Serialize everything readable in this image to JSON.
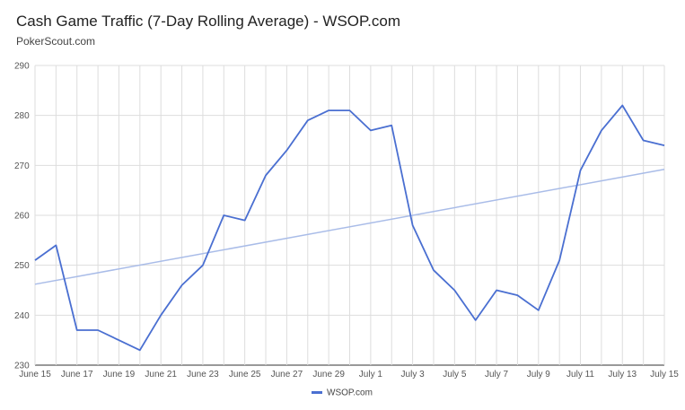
{
  "header": {
    "title": "Cash Game Traffic (7-Day Rolling Average) - WSOP.com",
    "subtitle": "PokerScout.com"
  },
  "colors": {
    "series": "#4a6fd1",
    "trend": "#a9bce8",
    "grid": "#dddddd"
  },
  "chart_data": {
    "type": "line",
    "title": "Cash Game Traffic (7-Day Rolling Average) - WSOP.com",
    "subtitle": "PokerScout.com",
    "xlabel": "",
    "ylabel": "",
    "ylim": [
      230,
      290
    ],
    "yticks": [
      230,
      240,
      250,
      260,
      270,
      280,
      290
    ],
    "x": [
      "June 15",
      "June 16",
      "June 17",
      "June 18",
      "June 19",
      "June 20",
      "June 21",
      "June 22",
      "June 23",
      "June 24",
      "June 25",
      "June 26",
      "June 27",
      "June 28",
      "June 29",
      "June 30",
      "July 1",
      "July 2",
      "July 3",
      "July 4",
      "July 5",
      "July 6",
      "July 7",
      "July 8",
      "July 9",
      "July 10",
      "July 11",
      "July 12",
      "July 13",
      "July 14",
      "July 15"
    ],
    "xtick_labels": [
      "June 15",
      "June 17",
      "June 19",
      "June 21",
      "June 23",
      "June 25",
      "June 27",
      "June 29",
      "July 1",
      "July 3",
      "July 5",
      "July 7",
      "July 9",
      "July 11",
      "July 13",
      "July 15"
    ],
    "series": [
      {
        "name": "WSOP.com",
        "values": [
          251,
          254,
          237,
          237,
          235,
          233,
          240,
          246,
          250,
          260,
          259,
          268,
          273,
          279,
          281,
          281,
          277,
          278,
          258,
          249,
          245,
          239,
          245,
          244,
          241,
          251,
          269,
          277,
          282,
          275,
          274
        ]
      }
    ],
    "trendline": {
      "start": 246.2,
      "end": 269.2
    },
    "grid": true,
    "legend": "bottom"
  }
}
